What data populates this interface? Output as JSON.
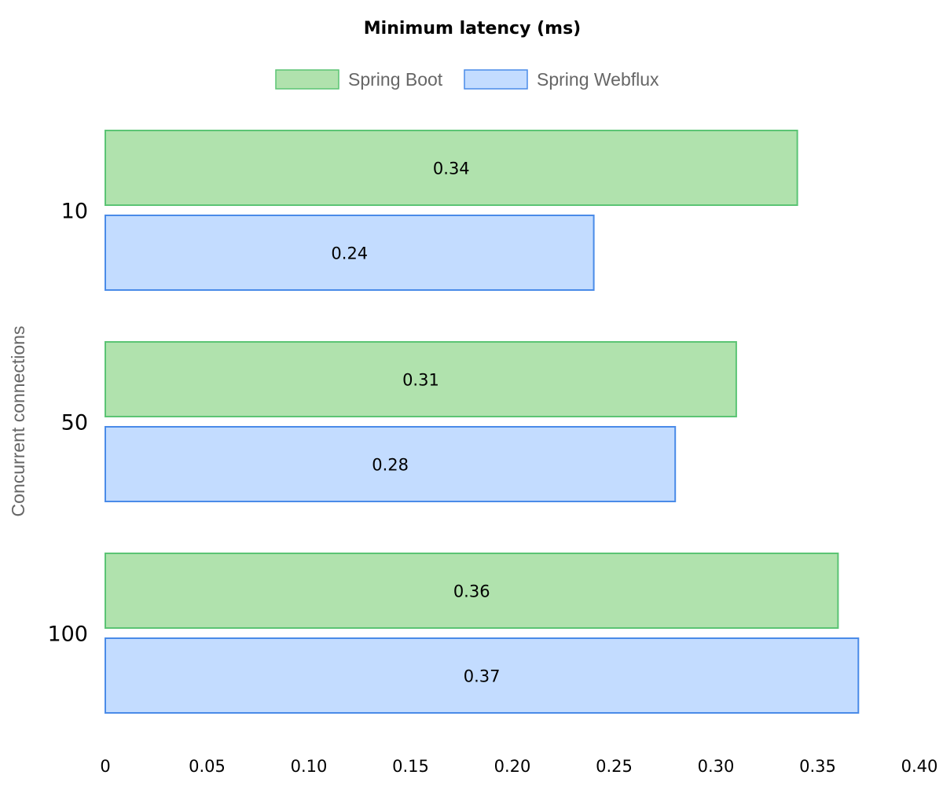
{
  "chart_data": {
    "type": "bar",
    "orientation": "horizontal",
    "title": "Minimum latency (ms)",
    "ylabel": "Concurrent connections",
    "xlabel": "",
    "categories": [
      "10",
      "50",
      "100"
    ],
    "series": [
      {
        "name": "Spring Boot",
        "values": [
          0.34,
          0.31,
          0.36
        ],
        "fill": "#b0e2ad",
        "stroke": "#5bc474"
      },
      {
        "name": "Spring Webflux",
        "values": [
          0.24,
          0.28,
          0.37
        ],
        "fill": "#c3dcff",
        "stroke": "#4a8be8"
      }
    ],
    "data_labels": [
      [
        "0.34",
        "0.31",
        "0.36"
      ],
      [
        "0.24",
        "0.28",
        "0.37"
      ]
    ],
    "xlim": [
      0,
      0.4
    ],
    "x_ticks": [
      0,
      0.05,
      0.1,
      0.15,
      0.2,
      0.25,
      0.3,
      0.35,
      0.4
    ],
    "x_tick_labels": [
      "0",
      "0.05",
      "0.10",
      "0.15",
      "0.20",
      "0.25",
      "0.30",
      "0.35",
      "0.40"
    ],
    "grid": false,
    "legend_position": "top-center"
  }
}
